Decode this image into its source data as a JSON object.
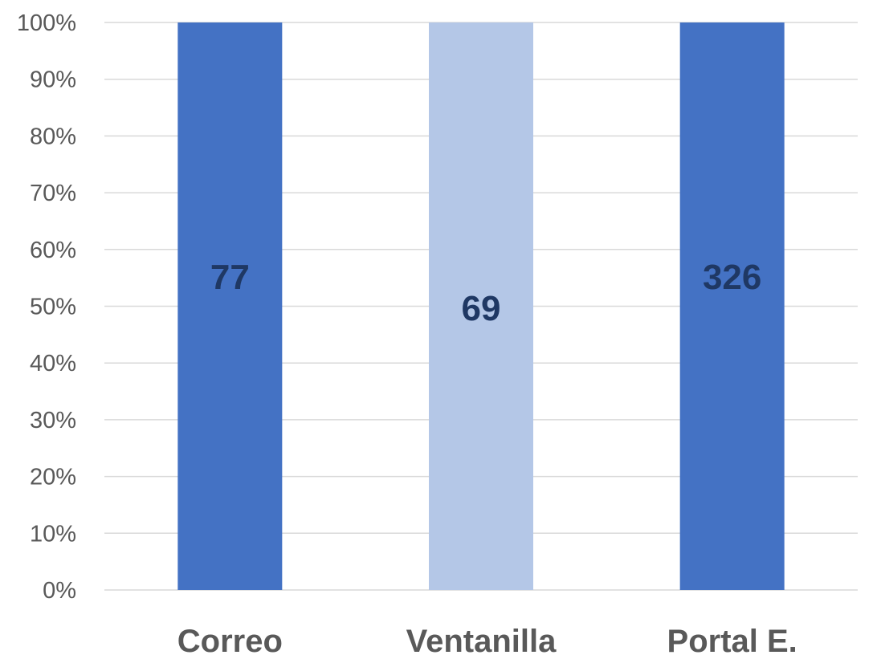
{
  "chart_data": {
    "type": "bar",
    "stacked_percent": true,
    "categories": [
      "Correo",
      "Ventanilla",
      "Portal E."
    ],
    "values": [
      77,
      69,
      326
    ],
    "data_labels": [
      "77",
      "69",
      "326"
    ],
    "y_ticks": [
      "0%",
      "10%",
      "20%",
      "30%",
      "40%",
      "50%",
      "60%",
      "70%",
      "80%",
      "90%",
      "100%"
    ],
    "ylim": [
      0,
      100
    ],
    "grid": true,
    "legend": "none",
    "title": "",
    "xlabel": "",
    "ylabel": "",
    "colors": {
      "bars": [
        "#4472c4",
        "#b4c7e7",
        "#4472c4"
      ],
      "data_label": "#1f3864",
      "tick_text": "#595959",
      "grid": "#d9d9d9"
    }
  }
}
